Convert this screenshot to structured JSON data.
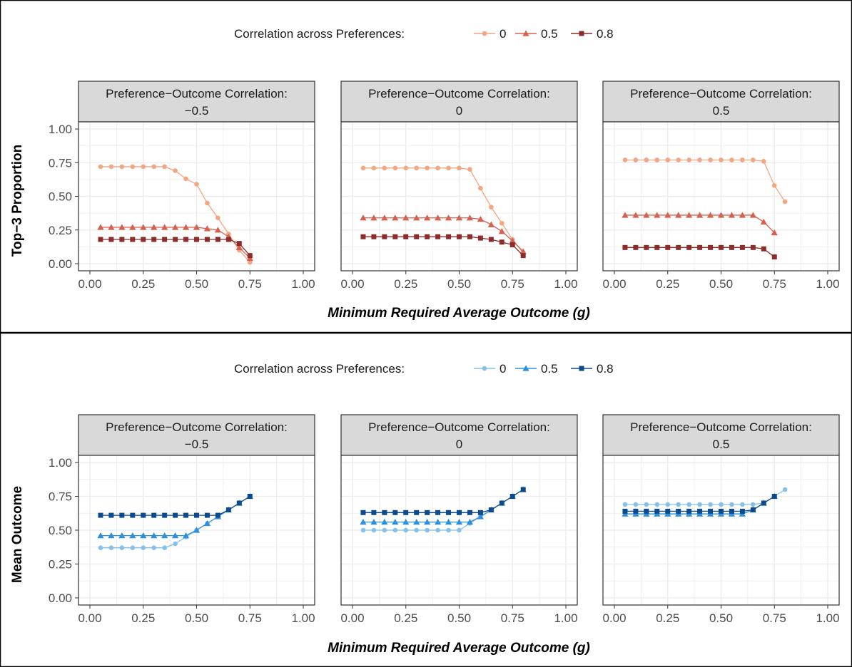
{
  "colors": {
    "top_series": [
      "#f4a582",
      "#d6604d",
      "#8c2d2c"
    ],
    "bottom_series": [
      "#85c1e9",
      "#2e8fe0",
      "#0b4a8c"
    ],
    "strip_fill": "#d9d9d9",
    "grid": "#ebebeb"
  },
  "chart_data": [
    {
      "type": "line",
      "title": "",
      "legend": {
        "title": "Correlation across Preferences:",
        "placement": "top",
        "labels": [
          "0",
          "0.5",
          "0.8"
        ],
        "markers": [
          "circle",
          "triangle",
          "square"
        ]
      },
      "xlabel": "Minimum Required Average Outcome (g)",
      "ylabel": "Top−3 Proportion",
      "xlim": [
        0,
        1
      ],
      "ylim": [
        0,
        1
      ],
      "xticks": [
        "0.00",
        "0.25",
        "0.50",
        "0.75",
        "1.00"
      ],
      "yticks": [
        "0.00",
        "0.25",
        "0.50",
        "0.75",
        "1.00"
      ],
      "grid": true,
      "facets": [
        {
          "strip": [
            "Preference−Outcome Correlation:",
            "−0.5"
          ],
          "x": [
            0.05,
            0.1,
            0.15,
            0.2,
            0.25,
            0.3,
            0.35,
            0.4,
            0.45,
            0.5,
            0.55,
            0.6,
            0.65,
            0.7,
            0.75
          ],
          "series": [
            {
              "values": [
                0.72,
                0.72,
                0.72,
                0.72,
                0.72,
                0.72,
                0.72,
                0.69,
                0.63,
                0.59,
                0.45,
                0.34,
                0.22,
                0.1,
                0.01
              ]
            },
            {
              "values": [
                0.27,
                0.27,
                0.27,
                0.27,
                0.27,
                0.27,
                0.27,
                0.27,
                0.27,
                0.27,
                0.26,
                0.25,
                0.2,
                0.12,
                0.04
              ]
            },
            {
              "values": [
                0.18,
                0.18,
                0.18,
                0.18,
                0.18,
                0.18,
                0.18,
                0.18,
                0.18,
                0.18,
                0.18,
                0.18,
                0.18,
                0.15,
                0.06
              ]
            }
          ]
        },
        {
          "strip": [
            "Preference−Outcome Correlation:",
            "0"
          ],
          "x": [
            0.05,
            0.1,
            0.15,
            0.2,
            0.25,
            0.3,
            0.35,
            0.4,
            0.45,
            0.5,
            0.55,
            0.6,
            0.65,
            0.7,
            0.75,
            0.8
          ],
          "series": [
            {
              "values": [
                0.71,
                0.71,
                0.71,
                0.71,
                0.71,
                0.71,
                0.71,
                0.71,
                0.71,
                0.71,
                0.7,
                0.56,
                0.42,
                0.3,
                0.18,
                0.08
              ]
            },
            {
              "values": [
                0.34,
                0.34,
                0.34,
                0.34,
                0.34,
                0.34,
                0.34,
                0.34,
                0.34,
                0.34,
                0.34,
                0.33,
                0.29,
                0.24,
                0.17,
                0.09
              ]
            },
            {
              "values": [
                0.2,
                0.2,
                0.2,
                0.2,
                0.2,
                0.2,
                0.2,
                0.2,
                0.2,
                0.2,
                0.2,
                0.19,
                0.18,
                0.16,
                0.14,
                0.06
              ]
            }
          ]
        },
        {
          "strip": [
            "Preference−Outcome Correlation:",
            "0.5"
          ],
          "x": [
            0.05,
            0.1,
            0.15,
            0.2,
            0.25,
            0.3,
            0.35,
            0.4,
            0.45,
            0.5,
            0.55,
            0.6,
            0.65,
            0.7,
            0.75,
            0.8
          ],
          "series": [
            {
              "values": [
                0.77,
                0.77,
                0.77,
                0.77,
                0.77,
                0.77,
                0.77,
                0.77,
                0.77,
                0.77,
                0.77,
                0.77,
                0.77,
                0.76,
                0.58,
                0.46
              ]
            },
            {
              "values": [
                0.36,
                0.36,
                0.36,
                0.36,
                0.36,
                0.36,
                0.36,
                0.36,
                0.36,
                0.36,
                0.36,
                0.36,
                0.36,
                0.31,
                0.23,
                null
              ]
            },
            {
              "values": [
                0.12,
                0.12,
                0.12,
                0.12,
                0.12,
                0.12,
                0.12,
                0.12,
                0.12,
                0.12,
                0.12,
                0.12,
                0.12,
                0.11,
                0.05,
                null
              ]
            }
          ]
        }
      ]
    },
    {
      "type": "line",
      "title": "",
      "legend": {
        "title": "Correlation across Preferences:",
        "placement": "top",
        "labels": [
          "0",
          "0.5",
          "0.8"
        ],
        "markers": [
          "circle",
          "triangle",
          "square"
        ]
      },
      "xlabel": "Minimum Required Average Outcome (g)",
      "ylabel": "Mean Outcome",
      "xlim": [
        0,
        1
      ],
      "ylim": [
        0,
        1
      ],
      "xticks": [
        "0.00",
        "0.25",
        "0.50",
        "0.75",
        "1.00"
      ],
      "yticks": [
        "0.00",
        "0.25",
        "0.50",
        "0.75",
        "1.00"
      ],
      "grid": true,
      "facets": [
        {
          "strip": [
            "Preference−Outcome Correlation:",
            "−0.5"
          ],
          "x": [
            0.05,
            0.1,
            0.15,
            0.2,
            0.25,
            0.3,
            0.35,
            0.4,
            0.45,
            0.5,
            0.55,
            0.6,
            0.65,
            0.7,
            0.75
          ],
          "series": [
            {
              "values": [
                0.37,
                0.37,
                0.37,
                0.37,
                0.37,
                0.37,
                0.37,
                0.4,
                0.45,
                0.5,
                0.55,
                0.6,
                0.65,
                0.7,
                0.75
              ]
            },
            {
              "values": [
                0.46,
                0.46,
                0.46,
                0.46,
                0.46,
                0.46,
                0.46,
                0.46,
                0.46,
                0.5,
                0.55,
                0.6,
                0.65,
                0.7,
                0.75
              ]
            },
            {
              "values": [
                0.61,
                0.61,
                0.61,
                0.61,
                0.61,
                0.61,
                0.61,
                0.61,
                0.61,
                0.61,
                0.61,
                0.61,
                0.65,
                0.7,
                0.75
              ]
            }
          ]
        },
        {
          "strip": [
            "Preference−Outcome Correlation:",
            "0"
          ],
          "x": [
            0.05,
            0.1,
            0.15,
            0.2,
            0.25,
            0.3,
            0.35,
            0.4,
            0.45,
            0.5,
            0.55,
            0.6,
            0.65,
            0.7,
            0.75,
            0.8
          ],
          "series": [
            {
              "values": [
                0.5,
                0.5,
                0.5,
                0.5,
                0.5,
                0.5,
                0.5,
                0.5,
                0.5,
                0.5,
                0.55,
                0.6,
                0.65,
                0.7,
                0.75,
                0.8
              ]
            },
            {
              "values": [
                0.56,
                0.56,
                0.56,
                0.56,
                0.56,
                0.56,
                0.56,
                0.56,
                0.56,
                0.56,
                0.56,
                0.6,
                0.65,
                0.7,
                0.75,
                0.8
              ]
            },
            {
              "values": [
                0.63,
                0.63,
                0.63,
                0.63,
                0.63,
                0.63,
                0.63,
                0.63,
                0.63,
                0.63,
                0.63,
                0.63,
                0.65,
                0.7,
                0.75,
                0.8
              ]
            }
          ]
        },
        {
          "strip": [
            "Preference−Outcome Correlation:",
            "0.5"
          ],
          "x": [
            0.05,
            0.1,
            0.15,
            0.2,
            0.25,
            0.3,
            0.35,
            0.4,
            0.45,
            0.5,
            0.55,
            0.6,
            0.65,
            0.7,
            0.75,
            0.8
          ],
          "series": [
            {
              "values": [
                0.69,
                0.69,
                0.69,
                0.69,
                0.69,
                0.69,
                0.69,
                0.69,
                0.69,
                0.69,
                0.69,
                0.69,
                0.69,
                0.7,
                0.75,
                0.8
              ]
            },
            {
              "values": [
                0.62,
                0.62,
                0.62,
                0.62,
                0.62,
                0.62,
                0.62,
                0.62,
                0.62,
                0.62,
                0.62,
                0.62,
                0.65,
                0.7,
                0.75,
                null
              ]
            },
            {
              "values": [
                0.64,
                0.64,
                0.64,
                0.64,
                0.64,
                0.64,
                0.64,
                0.64,
                0.64,
                0.64,
                0.64,
                0.64,
                0.65,
                0.7,
                0.75,
                null
              ]
            }
          ]
        }
      ]
    }
  ]
}
